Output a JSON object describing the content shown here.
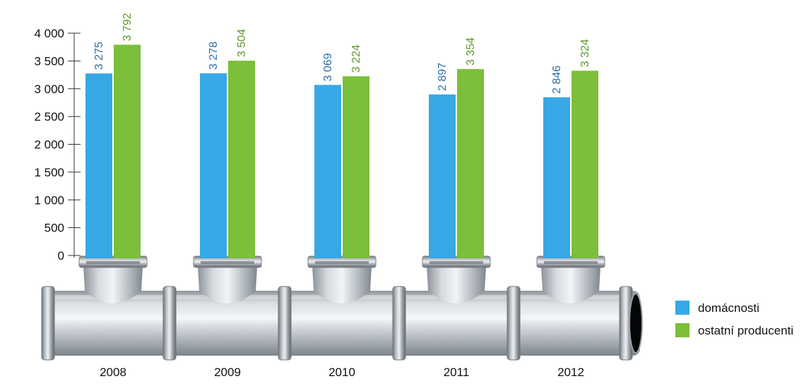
{
  "chart_data": {
    "type": "bar",
    "categories": [
      "2008",
      "2009",
      "2010",
      "2011",
      "2012"
    ],
    "series": [
      {
        "name": "domácnosti",
        "color": "#37a8e6",
        "label_color": "#2e6fa8",
        "values": [
          3275,
          3278,
          3069,
          2897,
          2846
        ],
        "value_labels": [
          "3 275",
          "3 278",
          "3 069",
          "2 897",
          "2 846"
        ]
      },
      {
        "name": "ostatní producenti",
        "color": "#7bbf3a",
        "label_color": "#5f9a2a",
        "values": [
          3792,
          3504,
          3224,
          3354,
          3324
        ],
        "value_labels": [
          "3 792",
          "3 504",
          "3 224",
          "3 354",
          "3 324"
        ]
      }
    ],
    "y_ticks": [
      0,
      500,
      1000,
      1500,
      2000,
      2500,
      3000,
      3500,
      4000
    ],
    "y_tick_labels": [
      "0",
      "500",
      "1 000",
      "1 500",
      "2 000",
      "2 500",
      "3 000",
      "3 500",
      "4 000"
    ],
    "ylim": [
      0,
      4000
    ],
    "legend_position": "right",
    "grid": false,
    "decoration": "pipe-tee-fittings"
  }
}
